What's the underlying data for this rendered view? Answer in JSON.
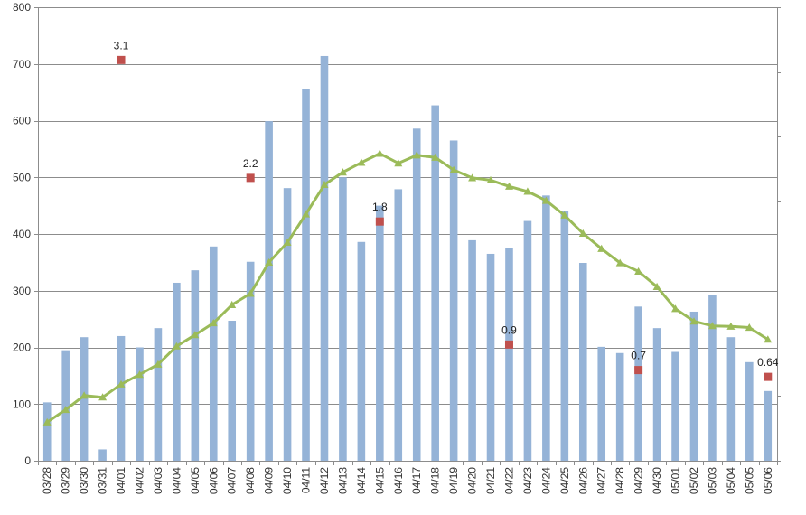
{
  "chart_data": {
    "type": "bar",
    "categories": [
      "03/28",
      "03/29",
      "03/30",
      "03/31",
      "04/01",
      "04/02",
      "04/03",
      "04/04",
      "04/05",
      "04/06",
      "04/07",
      "04/08",
      "04/09",
      "04/10",
      "04/11",
      "04/12",
      "04/13",
      "04/14",
      "04/15",
      "04/16",
      "04/17",
      "04/18",
      "04/19",
      "04/20",
      "04/21",
      "04/22",
      "04/23",
      "04/24",
      "04/25",
      "04/26",
      "04/27",
      "04/28",
      "04/29",
      "04/30",
      "05/01",
      "05/02",
      "05/03",
      "05/04",
      "05/05",
      "05/06"
    ],
    "ylim": [
      0,
      800
    ],
    "yticks": [
      "0",
      "100",
      "200",
      "300",
      "400",
      "500",
      "600",
      "700",
      "800"
    ],
    "grid": true,
    "series": [
      {
        "type": "bar",
        "color": "#95B3D7",
        "values": [
          103,
          195,
          218,
          20,
          220,
          200,
          234,
          314,
          336,
          378,
          247,
          351,
          599,
          481,
          656,
          714,
          500,
          386,
          450,
          479,
          586,
          627,
          565,
          389,
          365,
          376,
          423,
          468,
          441,
          349,
          201,
          190,
          272,
          234,
          192,
          263,
          293,
          218,
          174,
          123
        ]
      },
      {
        "type": "line",
        "color": "#9BBB59",
        "marker": "triangle",
        "values": [
          68,
          90,
          115,
          112,
          135,
          152,
          170,
          202,
          222,
          243,
          275,
          295,
          350,
          385,
          435,
          487,
          509,
          526,
          542,
          525,
          539,
          535,
          513,
          499,
          495,
          484,
          475,
          459,
          433,
          401,
          374,
          349,
          334,
          307,
          268,
          246,
          238,
          237,
          235,
          214
        ]
      },
      {
        "type": "scatter",
        "color": "#C0504D",
        "marker": "square",
        "points": [
          {
            "category": "04/01",
            "y": 707,
            "label": "3.1"
          },
          {
            "category": "04/08",
            "y": 499,
            "label": "2.2"
          },
          {
            "category": "04/15",
            "y": 422,
            "label": "1.8"
          },
          {
            "category": "04/22",
            "y": 205,
            "label": "0.9"
          },
          {
            "category": "04/29",
            "y": 160,
            "label": "0.7"
          },
          {
            "category": "05/06",
            "y": 148,
            "label": "0.64"
          }
        ]
      }
    ],
    "secondary_axis": {
      "position": "right",
      "tick_labels_visible": false,
      "tick_count": 7
    }
  }
}
